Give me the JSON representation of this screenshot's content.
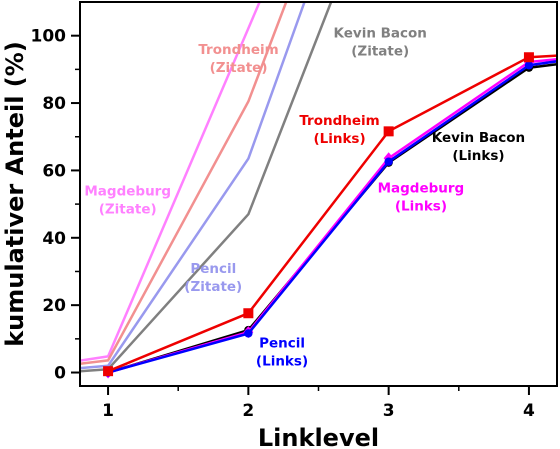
{
  "chart_data": {
    "type": "line",
    "xlabel": "Linklevel",
    "ylabel": "kumulativer Anteil (%)",
    "xlim": [
      0.8,
      4.2
    ],
    "ylim": [
      -4,
      110
    ],
    "x_ticks": [
      1,
      2,
      3,
      4
    ],
    "y_ticks": [
      0,
      20,
      40,
      60,
      80,
      100
    ],
    "x_minor_ticks": [
      1.5,
      2.5,
      3.5
    ],
    "y_minor_ticks": [
      10,
      30,
      50,
      70,
      90
    ],
    "grid": false,
    "legend": "none",
    "series": [
      {
        "label_key": "magdeburg_zitate",
        "color": "#ff80ff",
        "marker": "none",
        "line_width": 2.5,
        "points": [
          [
            0.8,
            3.5
          ],
          [
            1,
            4.8
          ],
          [
            2.08,
            110
          ]
        ]
      },
      {
        "label_key": "trondheim_zitate",
        "color": "#f29090",
        "marker": "none",
        "line_width": 2.5,
        "points": [
          [
            0.8,
            2.6
          ],
          [
            1,
            3.6
          ],
          [
            2,
            80.5
          ],
          [
            2.27,
            110
          ]
        ]
      },
      {
        "label_key": "pencil_zitate",
        "color": "#9999ee",
        "marker": "none",
        "line_width": 2.5,
        "points": [
          [
            0.8,
            1.3
          ],
          [
            1,
            2.0
          ],
          [
            2,
            63.5
          ],
          [
            2.4,
            110
          ]
        ]
      },
      {
        "label_key": "kevin_bacon_zitate",
        "color": "#808080",
        "marker": "none",
        "line_width": 2.5,
        "points": [
          [
            0.8,
            0.4
          ],
          [
            1,
            1.0
          ],
          [
            2,
            47
          ],
          [
            2.59,
            110
          ]
        ]
      },
      {
        "label_key": "kevin_bacon_links",
        "color": "#000000",
        "marker": "circle",
        "line_width": 2.5,
        "points": [
          [
            1,
            0
          ],
          [
            2,
            12.6
          ],
          [
            3,
            62.3
          ],
          [
            4,
            90.5
          ],
          [
            4.2,
            91.5
          ]
        ]
      },
      {
        "label_key": "magdeburg_links",
        "color": "#ff00ff",
        "marker": "diamond",
        "line_width": 2.5,
        "points": [
          [
            1,
            0
          ],
          [
            2,
            12.0
          ],
          [
            3,
            63.6
          ],
          [
            4,
            92.2
          ],
          [
            4.2,
            93.0
          ]
        ]
      },
      {
        "label_key": "pencil_links",
        "color": "#0000ff",
        "marker": "circle",
        "line_width": 2.5,
        "points": [
          [
            1,
            0
          ],
          [
            2,
            11.6
          ],
          [
            3,
            62.6
          ],
          [
            4,
            91.2
          ],
          [
            4.2,
            92.4
          ]
        ]
      },
      {
        "label_key": "trondheim_links",
        "color": "#ee0000",
        "marker": "square",
        "line_width": 2.5,
        "points": [
          [
            1,
            0.4
          ],
          [
            2,
            17.6
          ],
          [
            3,
            71.6
          ],
          [
            4,
            93.6
          ],
          [
            4.2,
            94.1
          ]
        ]
      }
    ],
    "annotations": {
      "trondheim_zitate": {
        "line1": "Trondheim",
        "line2": "(Zitate)",
        "color": "#f29090",
        "x": 1.93,
        "y": 94.5
      },
      "kevin_bacon_zitate": {
        "line1": "Kevin Bacon",
        "line2": "(Zitate)",
        "color": "#808080",
        "x": 2.94,
        "y": 99.5
      },
      "magdeburg_zitate": {
        "line1": "Magdeburg",
        "line2": "(Zitate)",
        "color": "#ff80ff",
        "x": 1.14,
        "y": 52.5
      },
      "pencil_zitate": {
        "line1": "Pencil",
        "line2": "(Zitate)",
        "color": "#9999ee",
        "x": 1.75,
        "y": 29.5
      },
      "trondheim_links": {
        "line1": "Trondheim",
        "line2": "(Links)",
        "color": "#ee0000",
        "x": 2.65,
        "y": 73.5
      },
      "kevin_bacon_links": {
        "line1": "Kevin Bacon",
        "line2": "(Links)",
        "color": "#000000",
        "x": 3.64,
        "y": 68.5
      },
      "magdeburg_links": {
        "line1": "Magdeburg",
        "line2": "(Links)",
        "color": "#ff00ff",
        "x": 3.23,
        "y": 53.5
      },
      "pencil_links": {
        "line1": "Pencil",
        "line2": "(Links)",
        "color": "#0000ff",
        "x": 2.24,
        "y": 7.5
      }
    }
  }
}
